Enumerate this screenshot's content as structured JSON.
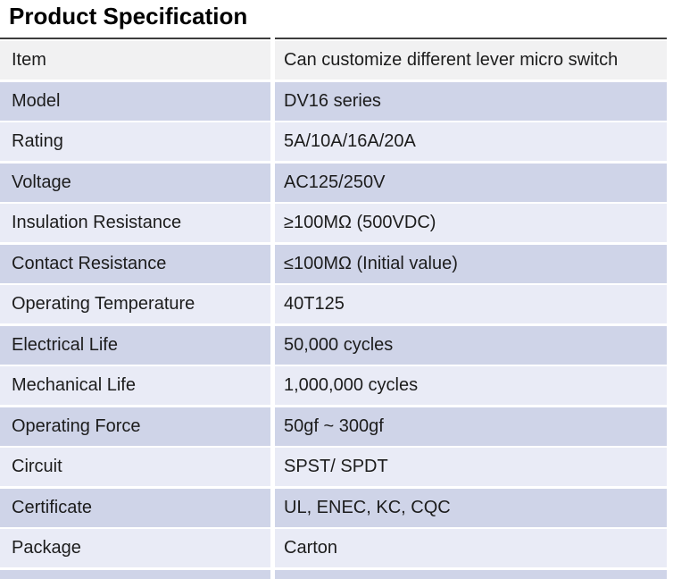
{
  "page": {
    "title": "Product Specification"
  },
  "colors": {
    "header_row_bg": "#f1f1f2",
    "row_dark_bg": "#cfd4e8",
    "row_light_bg": "#e9ebf6",
    "top_border": "#3d3d3d",
    "text": "#1c1c1c",
    "title_text": "#000000"
  },
  "table": {
    "rows": [
      {
        "label": "Item",
        "value": "Can customize different lever micro switch"
      },
      {
        "label": "Model",
        "value": "DV16 series"
      },
      {
        "label": "Rating",
        "value": "5A/10A/16A/20A"
      },
      {
        "label": "Voltage",
        "value": "AC125/250V"
      },
      {
        "label": "Insulation Resistance",
        "value": "≥100MΩ (500VDC)"
      },
      {
        "label": "Contact Resistance",
        "value": "≤100MΩ (Initial value)"
      },
      {
        "label": "Operating Temperature",
        "value": "40T125"
      },
      {
        "label": "Electrical Life",
        "value": "50,000 cycles"
      },
      {
        "label": "Mechanical Life",
        "value": "1,000,000 cycles"
      },
      {
        "label": "Operating Force",
        "value": "50gf ~ 300gf"
      },
      {
        "label": "Circuit",
        "value": "SPST/ SPDT"
      },
      {
        "label": "Certificate",
        "value": "UL, ENEC, KC, CQC"
      },
      {
        "label": "Package",
        "value": "Carton"
      }
    ]
  }
}
